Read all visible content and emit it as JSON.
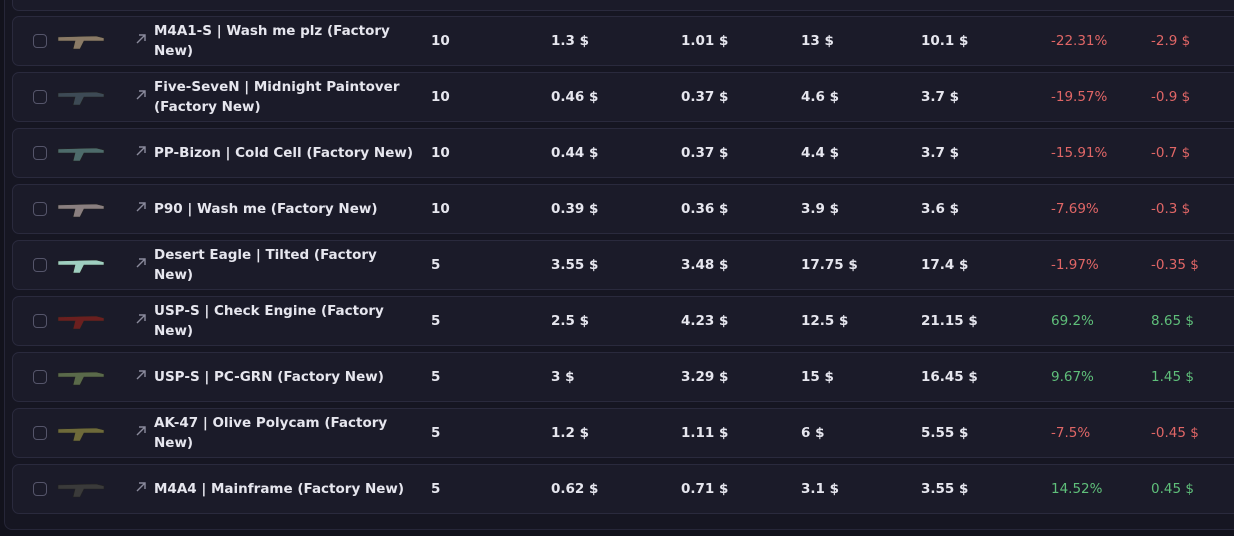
{
  "table": {
    "rows": [
      {
        "name": "M4A1-S | Wash me plz (Factory New)",
        "qty": "10",
        "price": "1.3 $",
        "target_price": "1.01 $",
        "total": "13 $",
        "target_total": "10.1 $",
        "change_pct": "-22.31%",
        "change": "-2.9 $",
        "color": "#e06666"
      },
      {
        "name": "Five-SeveN | Midnight Paintover (Factory New)",
        "qty": "10",
        "price": "0.46 $",
        "target_price": "0.37 $",
        "total": "4.6 $",
        "target_total": "3.7 $",
        "change_pct": "-19.57%",
        "change": "-0.9 $",
        "color": "#e06666"
      },
      {
        "name": "PP-Bizon | Cold Cell (Factory New)",
        "qty": "10",
        "price": "0.44 $",
        "target_price": "0.37 $",
        "total": "4.4 $",
        "target_total": "3.7 $",
        "change_pct": "-15.91%",
        "change": "-0.7 $",
        "color": "#e06666"
      },
      {
        "name": "P90 | Wash me (Factory New)",
        "qty": "10",
        "price": "0.39 $",
        "target_price": "0.36 $",
        "total": "3.9 $",
        "target_total": "3.6 $",
        "change_pct": "-7.69%",
        "change": "-0.3 $",
        "color": "#e06666"
      },
      {
        "name": "Desert Eagle | Tilted (Factory New)",
        "qty": "5",
        "price": "3.55 $",
        "target_price": "3.48 $",
        "total": "17.75 $",
        "target_total": "17.4 $",
        "change_pct": "-1.97%",
        "change": "-0.35 $",
        "color": "#e06666"
      },
      {
        "name": "USP-S | Check Engine (Factory New)",
        "qty": "5",
        "price": "2.5 $",
        "target_price": "4.23 $",
        "total": "12.5 $",
        "target_total": "21.15 $",
        "change_pct": "69.2%",
        "change": "8.65 $",
        "color": "#5fbf7a"
      },
      {
        "name": "USP-S | PC-GRN (Factory New)",
        "qty": "5",
        "price": "3 $",
        "target_price": "3.29 $",
        "total": "15 $",
        "target_total": "16.45 $",
        "change_pct": "9.67%",
        "change": "1.45 $",
        "color": "#5fbf7a"
      },
      {
        "name": "AK-47 | Olive Polycam (Factory New)",
        "qty": "5",
        "price": "1.2 $",
        "target_price": "1.11 $",
        "total": "6 $",
        "target_total": "5.55 $",
        "change_pct": "-7.5%",
        "change": "-0.45 $",
        "color": "#e06666"
      },
      {
        "name": "M4A4 | Mainframe (Factory New)",
        "qty": "5",
        "price": "0.62 $",
        "target_price": "0.71 $",
        "total": "3.1 $",
        "target_total": "3.55 $",
        "change_pct": "14.52%",
        "change": "0.45 $",
        "color": "#5fbf7a"
      }
    ]
  }
}
